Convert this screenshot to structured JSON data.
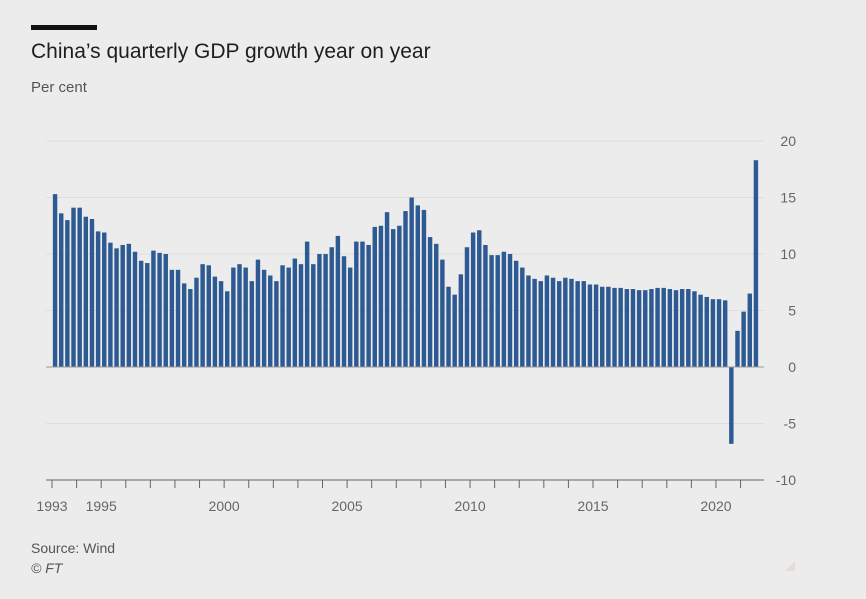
{
  "header": {
    "title": "China’s quarterly GDP growth year on year",
    "subtitle": "Per cent"
  },
  "footer": {
    "source": "Source: Wind",
    "credit": "© FT"
  },
  "colors": {
    "bar": "#2d5a92",
    "grid": "#dedede",
    "zero": "#999999",
    "axis": "#666666",
    "text": "#666666"
  },
  "chart_data": {
    "type": "bar",
    "title": "China’s quarterly GDP growth year on year",
    "ylabel": "Per cent",
    "xlabel": "",
    "ylim": [
      -10,
      20
    ],
    "yticks": [
      20,
      15,
      10,
      5,
      0,
      -5,
      -10
    ],
    "ytick_labels": [
      "20",
      "15",
      "10",
      "5",
      "0",
      "-5",
      "-10"
    ],
    "start_year": 1993,
    "xtick_labels": [
      {
        "year": 1993,
        "label": "1993"
      },
      {
        "year": 1995,
        "label": "1995"
      },
      {
        "year": 2000,
        "label": "2000"
      },
      {
        "year": 2005,
        "label": "2005"
      },
      {
        "year": 2010,
        "label": "2010"
      },
      {
        "year": 2015,
        "label": "2015"
      },
      {
        "year": 2020,
        "label": "2020"
      }
    ],
    "series": [
      {
        "name": "GDP growth, % y/y",
        "values": [
          15.3,
          13.6,
          13.0,
          14.1,
          14.1,
          13.3,
          13.1,
          12.0,
          11.9,
          11.0,
          10.5,
          10.8,
          10.9,
          10.2,
          9.4,
          9.2,
          10.3,
          10.1,
          10.0,
          8.6,
          8.6,
          7.4,
          6.9,
          7.9,
          9.1,
          9.0,
          8.0,
          7.6,
          6.7,
          8.8,
          9.1,
          8.8,
          7.6,
          9.5,
          8.6,
          8.1,
          7.6,
          9.0,
          8.8,
          9.6,
          9.1,
          11.1,
          9.1,
          10.0,
          10.0,
          10.6,
          11.6,
          9.8,
          8.8,
          11.1,
          11.1,
          10.8,
          12.4,
          12.5,
          13.7,
          12.2,
          12.5,
          13.8,
          15.0,
          14.3,
          13.9,
          11.5,
          10.9,
          9.5,
          7.1,
          6.4,
          8.2,
          10.6,
          11.9,
          12.1,
          10.8,
          9.9,
          9.9,
          10.2,
          10.0,
          9.4,
          8.8,
          8.1,
          7.8,
          7.6,
          8.1,
          7.9,
          7.6,
          7.9,
          7.8,
          7.6,
          7.6,
          7.3,
          7.3,
          7.1,
          7.1,
          7.0,
          7.0,
          6.9,
          6.9,
          6.8,
          6.8,
          6.9,
          7.0,
          7.0,
          6.9,
          6.8,
          6.9,
          6.9,
          6.7,
          6.4,
          6.2,
          6.0,
          6.0,
          5.9,
          -6.8,
          3.2,
          4.9,
          6.5,
          18.3
        ]
      }
    ]
  }
}
